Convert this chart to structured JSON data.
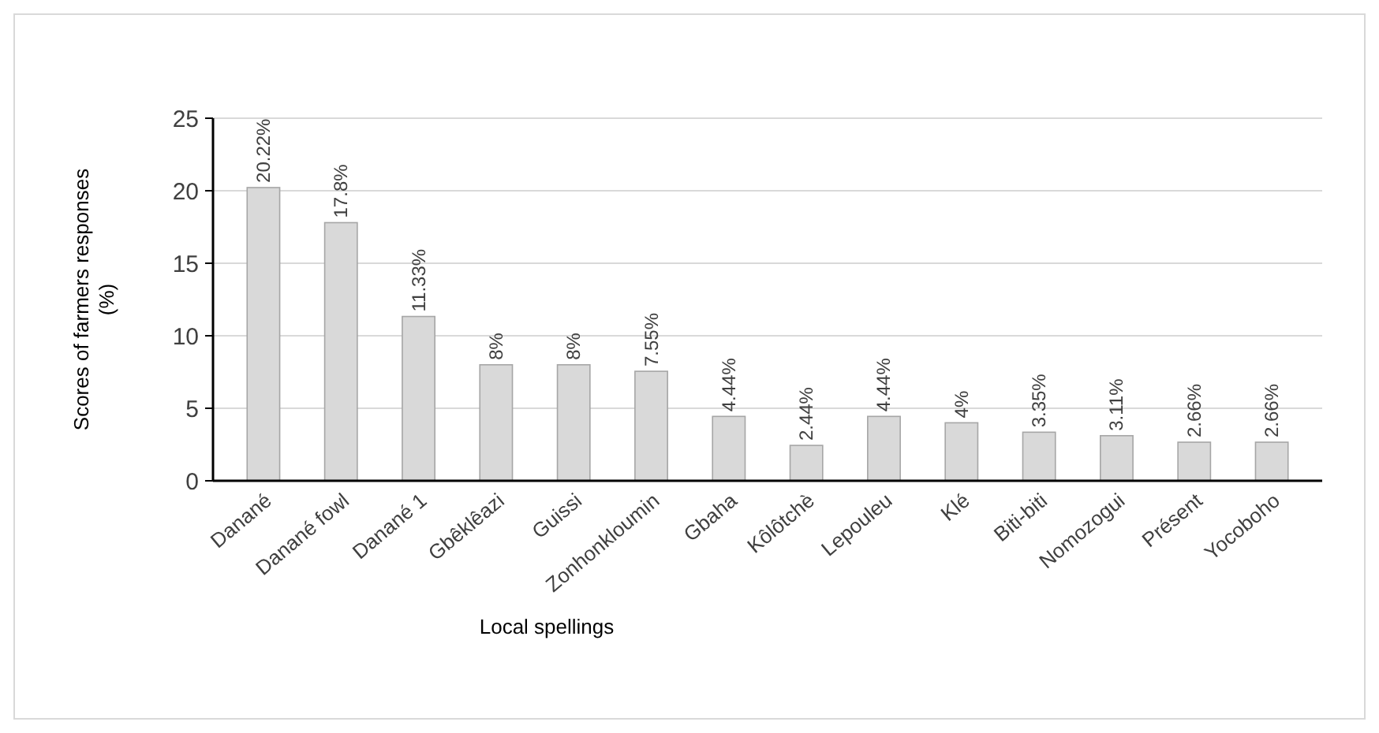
{
  "chart_data": {
    "type": "bar",
    "xlabel": "Local spellings",
    "ylabel": "Scores of farmers responses (%)",
    "categories": [
      "Danané",
      "Danané fowl",
      "Danané 1",
      "Gbêklêazi",
      "Guissi",
      "Zonhonkloumin",
      "Gbaha",
      "Kôlôtchè",
      "Lepouleu",
      "Klé",
      "Biti-biti",
      "Nomozogui",
      "Présent",
      "Yocoboho"
    ],
    "values": [
      20.22,
      17.8,
      11.33,
      8,
      8,
      7.55,
      4.44,
      2.44,
      4.44,
      4,
      3.35,
      3.11,
      2.66,
      2.66
    ],
    "value_labels": [
      "20.22%",
      "17.8%",
      "11.33%",
      "8%",
      "8%",
      "7.55%",
      "4.44%",
      "2.44%",
      "4.44%",
      "4%",
      "3.35%",
      "3.11%",
      "2.66%",
      "2.66%"
    ],
    "color": "#d9d9d9",
    "ylim": [
      0,
      25
    ],
    "yticks": [
      0,
      5,
      10,
      15,
      20,
      25
    ],
    "grid": "y"
  }
}
